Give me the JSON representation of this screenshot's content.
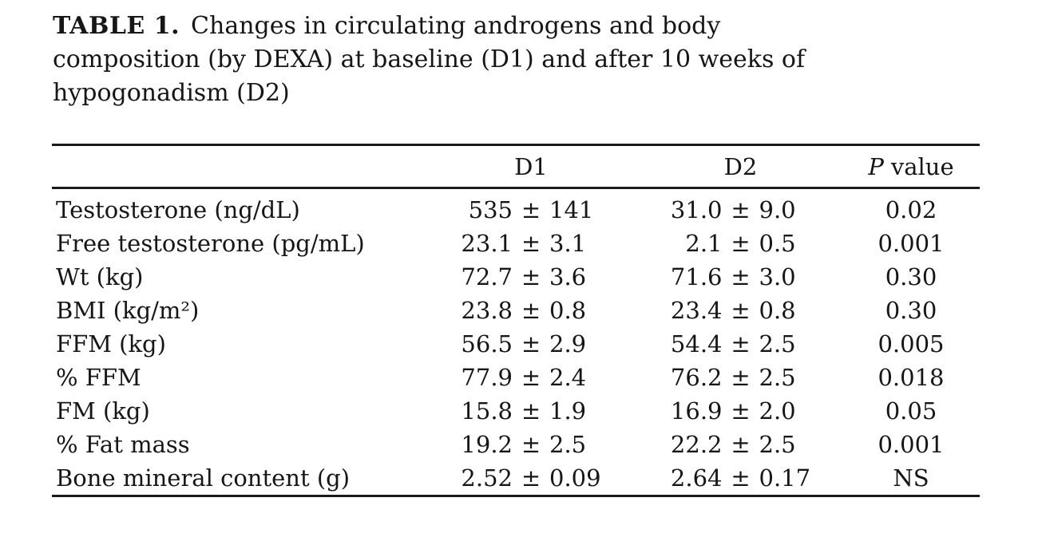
{
  "title": {
    "label": "TABLE 1.",
    "caption_lines": [
      "Changes in circulating androgens and body",
      "composition (by DEXA) at baseline (D1) and after 10 weeks of",
      "hypogonadism (D2)"
    ]
  },
  "table": {
    "pm": "±",
    "headers": {
      "rowlabel": "",
      "d1": "D1",
      "d2": "D2",
      "p_italic": "P",
      "p_rest": "value"
    },
    "rows": [
      {
        "label": "Testosterone (ng/dL)",
        "d1_mean": "535",
        "d1_sd": "141",
        "d2_mean": "31.0",
        "d2_sd": "9.0",
        "p": "0.02"
      },
      {
        "label": "Free testosterone (pg/mL)",
        "d1_mean": "23.1",
        "d1_sd": "3.1",
        "d2_mean": "2.1",
        "d2_sd": "0.5",
        "p": "0.001"
      },
      {
        "label": "Wt (kg)",
        "d1_mean": "72.7",
        "d1_sd": "3.6",
        "d2_mean": "71.6",
        "d2_sd": "3.0",
        "p": "0.30"
      },
      {
        "label": "BMI (kg/m²)",
        "d1_mean": "23.8",
        "d1_sd": "0.8",
        "d2_mean": "23.4",
        "d2_sd": "0.8",
        "p": "0.30"
      },
      {
        "label": "FFM (kg)",
        "d1_mean": "56.5",
        "d1_sd": "2.9",
        "d2_mean": "54.4",
        "d2_sd": "2.5",
        "p": "0.005"
      },
      {
        "label": "% FFM",
        "d1_mean": "77.9",
        "d1_sd": "2.4",
        "d2_mean": "76.2",
        "d2_sd": "2.5",
        "p": "0.018"
      },
      {
        "label": "FM (kg)",
        "d1_mean": "15.8",
        "d1_sd": "1.9",
        "d2_mean": "16.9",
        "d2_sd": "2.0",
        "p": "0.05"
      },
      {
        "label": "% Fat mass",
        "d1_mean": "19.2",
        "d1_sd": "2.5",
        "d2_mean": "22.2",
        "d2_sd": "2.5",
        "p": "0.001"
      },
      {
        "label": "Bone mineral content (g)",
        "d1_mean": "2.52",
        "d1_sd": "0.09",
        "d2_mean": "2.64",
        "d2_sd": "0.17",
        "p": "NS"
      }
    ]
  }
}
